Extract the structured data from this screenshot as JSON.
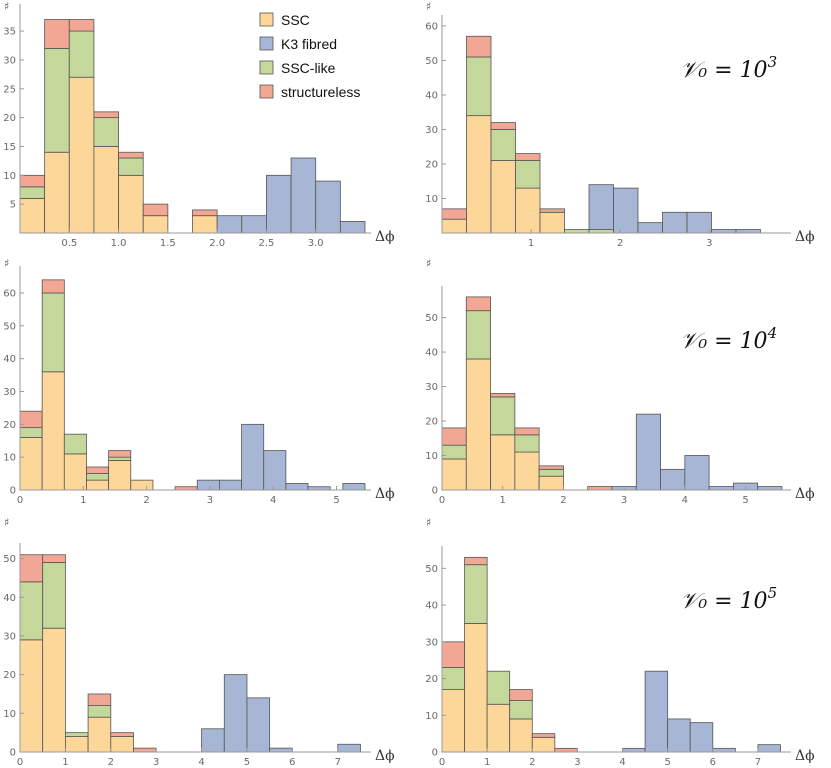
{
  "colors": {
    "SSC": "#fdd79a",
    "K3 fibred": "#a6b6d4",
    "SSC-like": "#c3d89a",
    "structureless": "#f2a795",
    "edge": "#555555",
    "axis": "#9a9a9a"
  },
  "legend": {
    "placement": "top-left panel, upper-middle",
    "items": [
      "SSC",
      "K3  fibred",
      "SSC-like",
      "structureless"
    ]
  },
  "chart_data": [
    {
      "type": "bar",
      "stacked": true,
      "ylabel": "♯",
      "xlabel": "Δϕ",
      "xlim": [
        0,
        3.5
      ],
      "ylim": [
        0,
        39
      ],
      "xticks": [
        "0.5",
        "1.0",
        "1.5",
        "2.0",
        "2.5",
        "3.0"
      ],
      "yticks": [
        "5",
        "10",
        "15",
        "20",
        "25",
        "30",
        "35"
      ],
      "bins": [
        {
          "x0": 0.0,
          "x1": 0.25,
          "SSC": 6,
          "SSC-like": 2,
          "structureless": 2,
          "K3 fibred": 0
        },
        {
          "x0": 0.25,
          "x1": 0.5,
          "SSC": 14,
          "SSC-like": 18,
          "structureless": 5,
          "K3 fibred": 0
        },
        {
          "x0": 0.5,
          "x1": 0.75,
          "SSC": 27,
          "SSC-like": 8,
          "structureless": 2,
          "K3 fibred": 0
        },
        {
          "x0": 0.75,
          "x1": 1.0,
          "SSC": 15,
          "SSC-like": 5,
          "structureless": 1,
          "K3 fibred": 0
        },
        {
          "x0": 1.0,
          "x1": 1.25,
          "SSC": 10,
          "SSC-like": 3,
          "structureless": 1,
          "K3 fibred": 0
        },
        {
          "x0": 1.25,
          "x1": 1.5,
          "SSC": 3,
          "SSC-like": 0,
          "structureless": 2,
          "K3 fibred": 0
        },
        {
          "x0": 1.75,
          "x1": 2.0,
          "SSC": 3,
          "SSC-like": 0,
          "structureless": 1,
          "K3 fibred": 0
        },
        {
          "x0": 2.0,
          "x1": 2.25,
          "SSC": 0,
          "SSC-like": 0,
          "structureless": 0,
          "K3 fibred": 3
        },
        {
          "x0": 2.25,
          "x1": 2.5,
          "SSC": 0,
          "SSC-like": 0,
          "structureless": 0,
          "K3 fibred": 3
        },
        {
          "x0": 2.5,
          "x1": 2.75,
          "SSC": 0,
          "SSC-like": 0,
          "structureless": 0,
          "K3 fibred": 10
        },
        {
          "x0": 2.75,
          "x1": 3.0,
          "SSC": 0,
          "SSC-like": 0,
          "structureless": 0,
          "K3 fibred": 13
        },
        {
          "x0": 3.0,
          "x1": 3.25,
          "SSC": 0,
          "SSC-like": 0,
          "structureless": 0,
          "K3 fibred": 9
        },
        {
          "x0": 3.25,
          "x1": 3.5,
          "SSC": 0,
          "SSC-like": 0,
          "structureless": 0,
          "K3 fibred": 2
        }
      ]
    },
    {
      "type": "bar",
      "stacked": true,
      "ylabel": "♯",
      "xlabel": "Δϕ",
      "annotation": {
        "base": "𝒱₀ = 10",
        "exp": "3"
      },
      "xlim": [
        0,
        3.85
      ],
      "ylim": [
        0,
        62
      ],
      "xticks": [
        "1",
        "2",
        "3"
      ],
      "yticks": [
        "10",
        "20",
        "30",
        "40",
        "50",
        "60"
      ],
      "bins": [
        {
          "x0": 0.0,
          "x1": 0.275,
          "SSC": 4,
          "SSC-like": 0,
          "structureless": 3,
          "K3 fibred": 0
        },
        {
          "x0": 0.275,
          "x1": 0.55,
          "SSC": 34,
          "SSC-like": 17,
          "structureless": 6,
          "K3 fibred": 0
        },
        {
          "x0": 0.55,
          "x1": 0.825,
          "SSC": 21,
          "SSC-like": 9,
          "structureless": 2,
          "K3 fibred": 0
        },
        {
          "x0": 0.825,
          "x1": 1.1,
          "SSC": 13,
          "SSC-like": 8,
          "structureless": 2,
          "K3 fibred": 0
        },
        {
          "x0": 1.1,
          "x1": 1.375,
          "SSC": 6,
          "SSC-like": 0,
          "structureless": 1,
          "K3 fibred": 0
        },
        {
          "x0": 1.375,
          "x1": 1.65,
          "SSC": 0,
          "SSC-like": 1,
          "structureless": 0,
          "K3 fibred": 0
        },
        {
          "x0": 1.65,
          "x1": 1.925,
          "SSC": 0,
          "SSC-like": 1,
          "structureless": 0,
          "K3 fibred": 13
        },
        {
          "x0": 1.925,
          "x1": 2.2,
          "SSC": 0,
          "SSC-like": 0,
          "structureless": 0,
          "K3 fibred": 13
        },
        {
          "x0": 2.2,
          "x1": 2.475,
          "SSC": 0,
          "SSC-like": 0,
          "structureless": 0,
          "K3 fibred": 3
        },
        {
          "x0": 2.475,
          "x1": 2.75,
          "SSC": 0,
          "SSC-like": 0,
          "structureless": 0,
          "K3 fibred": 6
        },
        {
          "x0": 2.75,
          "x1": 3.025,
          "SSC": 0,
          "SSC-like": 0,
          "structureless": 0,
          "K3 fibred": 6
        },
        {
          "x0": 3.025,
          "x1": 3.3,
          "SSC": 0,
          "SSC-like": 0,
          "structureless": 0,
          "K3 fibred": 1
        },
        {
          "x0": 3.3,
          "x1": 3.575,
          "SSC": 0,
          "SSC-like": 0,
          "structureless": 0,
          "K3 fibred": 1
        }
      ]
    },
    {
      "type": "bar",
      "stacked": true,
      "ylabel": "♯",
      "xlabel": "Δϕ",
      "xlim": [
        0,
        5.45
      ],
      "ylim": [
        0,
        67
      ],
      "xticks": [
        "0",
        "1",
        "2",
        "3",
        "4",
        "5"
      ],
      "yticks": [
        "0",
        "10",
        "20",
        "30",
        "40",
        "50",
        "60"
      ],
      "bins": [
        {
          "x0": 0.0,
          "x1": 0.35,
          "SSC": 16,
          "SSC-like": 3,
          "structureless": 5,
          "K3 fibred": 0
        },
        {
          "x0": 0.35,
          "x1": 0.7,
          "SSC": 36,
          "SSC-like": 24,
          "structureless": 4,
          "K3 fibred": 0
        },
        {
          "x0": 0.7,
          "x1": 1.05,
          "SSC": 11,
          "SSC-like": 6,
          "structureless": 0,
          "K3 fibred": 0
        },
        {
          "x0": 1.05,
          "x1": 1.4,
          "SSC": 3,
          "SSC-like": 2,
          "structureless": 2,
          "K3 fibred": 0
        },
        {
          "x0": 1.4,
          "x1": 1.75,
          "SSC": 9,
          "SSC-like": 1,
          "structureless": 2,
          "K3 fibred": 0
        },
        {
          "x0": 1.75,
          "x1": 2.1,
          "SSC": 3,
          "SSC-like": 0,
          "structureless": 0,
          "K3 fibred": 0
        },
        {
          "x0": 2.45,
          "x1": 2.8,
          "SSC": 0,
          "SSC-like": 0,
          "structureless": 1,
          "K3 fibred": 0
        },
        {
          "x0": 2.8,
          "x1": 3.15,
          "SSC": 0,
          "SSC-like": 0,
          "structureless": 0,
          "K3 fibred": 3
        },
        {
          "x0": 3.15,
          "x1": 3.5,
          "SSC": 0,
          "SSC-like": 0,
          "structureless": 0,
          "K3 fibred": 3
        },
        {
          "x0": 3.5,
          "x1": 3.85,
          "SSC": 0,
          "SSC-like": 0,
          "structureless": 0,
          "K3 fibred": 20
        },
        {
          "x0": 3.85,
          "x1": 4.2,
          "SSC": 0,
          "SSC-like": 0,
          "structureless": 0,
          "K3 fibred": 12
        },
        {
          "x0": 4.2,
          "x1": 4.55,
          "SSC": 0,
          "SSC-like": 0,
          "structureless": 0,
          "K3 fibred": 2
        },
        {
          "x0": 4.55,
          "x1": 4.9,
          "SSC": 0,
          "SSC-like": 0,
          "structureless": 0,
          "K3 fibred": 1
        },
        {
          "x0": 5.1,
          "x1": 5.45,
          "SSC": 0,
          "SSC-like": 0,
          "structureless": 0,
          "K3 fibred": 2
        }
      ]
    },
    {
      "type": "bar",
      "stacked": true,
      "ylabel": "♯",
      "xlabel": "Δϕ",
      "annotation": {
        "base": "𝒱₀ = 10",
        "exp": "4"
      },
      "xlim": [
        0,
        5.65
      ],
      "ylim": [
        0,
        58
      ],
      "xticks": [
        "0",
        "1",
        "2",
        "3",
        "4",
        "5"
      ],
      "yticks": [
        "0",
        "10",
        "20",
        "30",
        "40",
        "50"
      ],
      "bins": [
        {
          "x0": 0.0,
          "x1": 0.4,
          "SSC": 9,
          "SSC-like": 4,
          "structureless": 5,
          "K3 fibred": 0
        },
        {
          "x0": 0.4,
          "x1": 0.8,
          "SSC": 38,
          "SSC-like": 14,
          "structureless": 4,
          "K3 fibred": 0
        },
        {
          "x0": 0.8,
          "x1": 1.2,
          "SSC": 16,
          "SSC-like": 11,
          "structureless": 1,
          "K3 fibred": 0
        },
        {
          "x0": 1.2,
          "x1": 1.6,
          "SSC": 11,
          "SSC-like": 5,
          "structureless": 2,
          "K3 fibred": 0
        },
        {
          "x0": 1.6,
          "x1": 2.0,
          "SSC": 4,
          "SSC-like": 2,
          "structureless": 1,
          "K3 fibred": 0
        },
        {
          "x0": 2.4,
          "x1": 2.8,
          "SSC": 0,
          "SSC-like": 0,
          "structureless": 1,
          "K3 fibred": 0
        },
        {
          "x0": 2.8,
          "x1": 3.2,
          "SSC": 0,
          "SSC-like": 0,
          "structureless": 0,
          "K3 fibred": 1
        },
        {
          "x0": 3.2,
          "x1": 3.6,
          "SSC": 0,
          "SSC-like": 0,
          "structureless": 0,
          "K3 fibred": 22
        },
        {
          "x0": 3.6,
          "x1": 4.0,
          "SSC": 0,
          "SSC-like": 0,
          "structureless": 0,
          "K3 fibred": 6
        },
        {
          "x0": 4.0,
          "x1": 4.4,
          "SSC": 0,
          "SSC-like": 0,
          "structureless": 0,
          "K3 fibred": 10
        },
        {
          "x0": 4.4,
          "x1": 4.8,
          "SSC": 0,
          "SSC-like": 0,
          "structureless": 0,
          "K3 fibred": 1
        },
        {
          "x0": 4.8,
          "x1": 5.2,
          "SSC": 0,
          "SSC-like": 0,
          "structureless": 0,
          "K3 fibred": 2
        },
        {
          "x0": 5.2,
          "x1": 5.6,
          "SSC": 0,
          "SSC-like": 0,
          "structureless": 0,
          "K3 fibred": 1
        }
      ]
    },
    {
      "type": "bar",
      "stacked": true,
      "ylabel": "♯",
      "xlabel": "Δϕ",
      "xlim": [
        0,
        7.6
      ],
      "ylim": [
        0,
        53
      ],
      "xticks": [
        "0",
        "1",
        "2",
        "3",
        "4",
        "5",
        "6",
        "7"
      ],
      "yticks": [
        "0",
        "10",
        "20",
        "30",
        "40",
        "50"
      ],
      "bins": [
        {
          "x0": 0.0,
          "x1": 0.5,
          "SSC": 29,
          "SSC-like": 15,
          "structureless": 7,
          "K3 fibred": 0
        },
        {
          "x0": 0.5,
          "x1": 1.0,
          "SSC": 32,
          "SSC-like": 17,
          "structureless": 2,
          "K3 fibred": 0
        },
        {
          "x0": 1.0,
          "x1": 1.5,
          "SSC": 4,
          "SSC-like": 1,
          "structureless": 0,
          "K3 fibred": 0
        },
        {
          "x0": 1.5,
          "x1": 2.0,
          "SSC": 9,
          "SSC-like": 3,
          "structureless": 3,
          "K3 fibred": 0
        },
        {
          "x0": 2.0,
          "x1": 2.5,
          "SSC": 4,
          "SSC-like": 0,
          "structureless": 1,
          "K3 fibred": 0
        },
        {
          "x0": 2.5,
          "x1": 3.0,
          "SSC": 0,
          "SSC-like": 0,
          "structureless": 1,
          "K3 fibred": 0
        },
        {
          "x0": 4.0,
          "x1": 4.5,
          "SSC": 0,
          "SSC-like": 0,
          "structureless": 0,
          "K3 fibred": 6
        },
        {
          "x0": 4.5,
          "x1": 5.0,
          "SSC": 0,
          "SSC-like": 0,
          "structureless": 0,
          "K3 fibred": 20
        },
        {
          "x0": 5.0,
          "x1": 5.5,
          "SSC": 0,
          "SSC-like": 0,
          "structureless": 0,
          "K3 fibred": 14
        },
        {
          "x0": 5.5,
          "x1": 6.0,
          "SSC": 0,
          "SSC-like": 0,
          "structureless": 0,
          "K3 fibred": 1
        },
        {
          "x0": 7.0,
          "x1": 7.5,
          "SSC": 0,
          "SSC-like": 0,
          "structureless": 0,
          "K3 fibred": 2
        }
      ]
    },
    {
      "type": "bar",
      "stacked": true,
      "ylabel": "♯",
      "xlabel": "Δϕ",
      "annotation": {
        "base": "𝒱₀ = 10",
        "exp": "5"
      },
      "xlim": [
        0,
        7.6
      ],
      "ylim": [
        0,
        55
      ],
      "xticks": [
        "0",
        "1",
        "2",
        "3",
        "4",
        "5",
        "6",
        "7"
      ],
      "yticks": [
        "0",
        "10",
        "20",
        "30",
        "40",
        "50"
      ],
      "bins": [
        {
          "x0": 0.0,
          "x1": 0.5,
          "SSC": 17,
          "SSC-like": 6,
          "structureless": 7,
          "K3 fibred": 0
        },
        {
          "x0": 0.5,
          "x1": 1.0,
          "SSC": 35,
          "SSC-like": 16,
          "structureless": 2,
          "K3 fibred": 0
        },
        {
          "x0": 1.0,
          "x1": 1.5,
          "SSC": 13,
          "SSC-like": 9,
          "structureless": 0,
          "K3 fibred": 0
        },
        {
          "x0": 1.5,
          "x1": 2.0,
          "SSC": 9,
          "SSC-like": 5,
          "structureless": 3,
          "K3 fibred": 0
        },
        {
          "x0": 2.0,
          "x1": 2.5,
          "SSC": 4,
          "SSC-like": 0,
          "structureless": 1,
          "K3 fibred": 0
        },
        {
          "x0": 2.5,
          "x1": 3.0,
          "SSC": 0,
          "SSC-like": 0,
          "structureless": 1,
          "K3 fibred": 0
        },
        {
          "x0": 4.0,
          "x1": 4.5,
          "SSC": 0,
          "SSC-like": 0,
          "structureless": 0,
          "K3 fibred": 1
        },
        {
          "x0": 4.5,
          "x1": 5.0,
          "SSC": 0,
          "SSC-like": 0,
          "structureless": 0,
          "K3 fibred": 22
        },
        {
          "x0": 5.0,
          "x1": 5.5,
          "SSC": 0,
          "SSC-like": 0,
          "structureless": 0,
          "K3 fibred": 9
        },
        {
          "x0": 5.5,
          "x1": 6.0,
          "SSC": 0,
          "SSC-like": 0,
          "structureless": 0,
          "K3 fibred": 8
        },
        {
          "x0": 6.0,
          "x1": 6.5,
          "SSC": 0,
          "SSC-like": 0,
          "structureless": 0,
          "K3 fibred": 1
        },
        {
          "x0": 7.0,
          "x1": 7.5,
          "SSC": 0,
          "SSC-like": 0,
          "structureless": 0,
          "K3 fibred": 2
        }
      ]
    }
  ]
}
